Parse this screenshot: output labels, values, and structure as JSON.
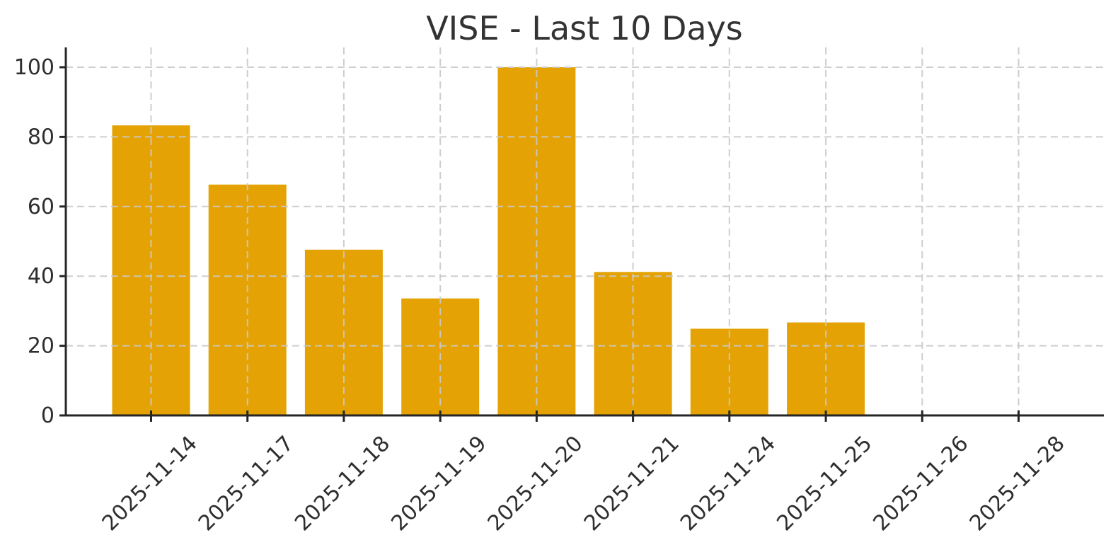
{
  "chart_data": {
    "type": "bar",
    "title": "VISE - Last 10 Days",
    "xlabel": "",
    "ylabel": "",
    "categories": [
      "2025-11-14",
      "2025-11-17",
      "2025-11-18",
      "2025-11-19",
      "2025-11-20",
      "2025-11-21",
      "2025-11-24",
      "2025-11-25",
      "2025-11-26",
      "2025-11-28"
    ],
    "values": [
      83.3,
      66.3,
      47.6,
      33.6,
      100,
      41.2,
      24.9,
      26.7,
      0,
      0
    ],
    "yticks": [
      0,
      20,
      40,
      60,
      80,
      100
    ],
    "ylim": [
      0,
      105.7
    ],
    "grid": "dashed, drawn above bars",
    "legend": "none",
    "x_label_rotation_deg": 45,
    "colors": {
      "bar": "#E4A204",
      "text": "#333333",
      "tick_text": "#2e2e2e",
      "axis": "#262626",
      "grid": "#C9C9C9",
      "background": "#FFFFFF"
    }
  }
}
